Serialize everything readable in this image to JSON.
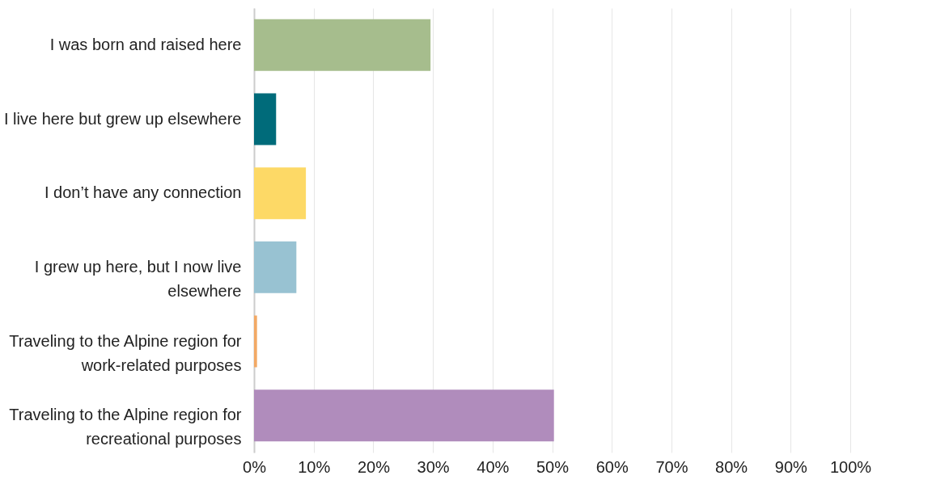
{
  "chart_data": {
    "type": "bar",
    "orientation": "horizontal",
    "categories": [
      "I was born and raised here",
      "I live here but grew up elsewhere",
      "I don’t have any connection",
      "I grew up here, but I now live elsewhere",
      "Traveling to the Alpine region for work-related purposes",
      "Traveling to the Alpine region for recreational purposes"
    ],
    "values": [
      29.6,
      3.7,
      8.7,
      7.1,
      0.5,
      50.3
    ],
    "colors": [
      "#a6bd8d",
      "#006b7a",
      "#fdd966",
      "#98c2d2",
      "#f2a965",
      "#b08cbc"
    ],
    "xlim": [
      0,
      100
    ],
    "xticks": [
      {
        "value": 0,
        "label": "0%"
      },
      {
        "value": 10,
        "label": "10%"
      },
      {
        "value": 20,
        "label": "20%"
      },
      {
        "value": 30,
        "label": "30%"
      },
      {
        "value": 40,
        "label": "40%"
      },
      {
        "value": 50,
        "label": "50%"
      },
      {
        "value": 60,
        "label": "60%"
      },
      {
        "value": 70,
        "label": "70%"
      },
      {
        "value": 80,
        "label": "80%"
      },
      {
        "value": 90,
        "label": "90%"
      },
      {
        "value": 100,
        "label": "100%"
      }
    ],
    "grid": "x"
  }
}
